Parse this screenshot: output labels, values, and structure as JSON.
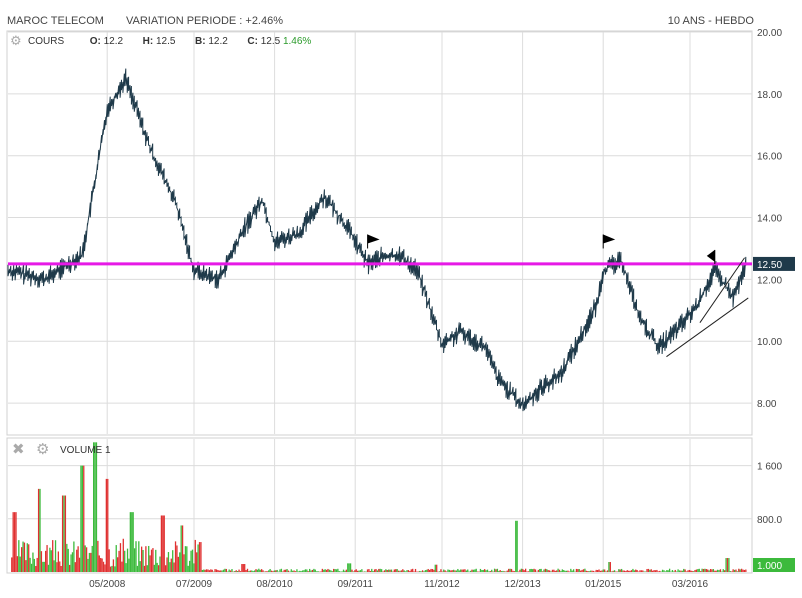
{
  "header": {
    "title": "MAROC TELECOM",
    "variation": "VARIATION PERIODE : +2.46%",
    "period": "10 ANS - HEBDO"
  },
  "price_legend": {
    "label": "COURS",
    "o_label": "O:",
    "o_value": "12.2",
    "h_label": "H:",
    "h_value": "12.5",
    "b_label": "B:",
    "b_value": "12.2",
    "c_label": "C:",
    "c_value": "12.5",
    "change": "1.46%"
  },
  "volume_legend": {
    "label": "VOLUME 1"
  },
  "icons": {
    "settings": "gear-icon",
    "close": "close-icon"
  },
  "colors": {
    "price": "#1f3a4a",
    "level_line": "#e619e6",
    "level_tag_bg": "#1f3a4a",
    "volume_up": "#3cba3c",
    "volume_down": "#e03030",
    "grid": "#dcdcdc",
    "trendline": "#222222"
  },
  "chart_data": [
    {
      "type": "line",
      "name": "price",
      "x": [
        "2007-01",
        "2007-07",
        "2008-01",
        "2008-05",
        "2008-08",
        "2008-12",
        "2009-04",
        "2009-07",
        "2009-11",
        "2010-03",
        "2010-06",
        "2010-08",
        "2010-12",
        "2011-04",
        "2011-08",
        "2011-11",
        "2012-01",
        "2012-04",
        "2012-07",
        "2012-11",
        "2013-02",
        "2013-06",
        "2013-08",
        "2013-12",
        "2014-03",
        "2014-06",
        "2014-09",
        "2014-12",
        "2015-01",
        "2015-04",
        "2015-07",
        "2015-10",
        "2016-01",
        "2016-04",
        "2016-07",
        "2016-10",
        "2016-12"
      ],
      "y": [
        12.3,
        12.0,
        12.8,
        17.5,
        18.5,
        16.2,
        14.5,
        12.3,
        12.0,
        13.6,
        14.6,
        13.2,
        13.5,
        14.7,
        13.6,
        12.5,
        12.7,
        12.8,
        12.3,
        9.9,
        10.3,
        9.8,
        8.8,
        7.9,
        8.5,
        8.9,
        10.0,
        11.2,
        12.3,
        12.6,
        10.7,
        9.8,
        10.4,
        11.1,
        12.3,
        11.4,
        12.45
      ],
      "ylim": [
        7,
        20
      ],
      "yticks": [
        "8.00",
        "10.00",
        "12.00",
        "14.00",
        "16.00",
        "18.00",
        "20.00"
      ],
      "xticks": [
        "05/2008",
        "07/2009",
        "08/2010",
        "09/2011",
        "11/2012",
        "12/2013",
        "01/2015",
        "03/2016"
      ],
      "level": 12.5,
      "level_label": "12.50",
      "flags": [
        "2011-11",
        "2015-01",
        "2016-07"
      ]
    },
    {
      "type": "bar",
      "name": "VOLUME 1",
      "ylim": [
        0,
        2000
      ],
      "yticks": [
        "800.0",
        "1 600"
      ],
      "last_value_label": "1.000",
      "peaks": [
        {
          "x": "2007-02",
          "value": 900
        },
        {
          "x": "2007-06",
          "value": 1250
        },
        {
          "x": "2007-10",
          "value": 1150
        },
        {
          "x": "2008-01",
          "value": 1600
        },
        {
          "x": "2008-03",
          "value": 1950
        },
        {
          "x": "2008-05",
          "value": 1400
        },
        {
          "x": "2008-09",
          "value": 900
        },
        {
          "x": "2009-02",
          "value": 850
        },
        {
          "x": "2009-05",
          "value": 700
        },
        {
          "x": "2009-08",
          "value": 450
        },
        {
          "x": "2010-03",
          "value": 120
        },
        {
          "x": "2011-08",
          "value": 130
        },
        {
          "x": "2012-10",
          "value": 110
        },
        {
          "x": "2013-11",
          "value": 770
        },
        {
          "x": "2015-02",
          "value": 150
        },
        {
          "x": "2016-09",
          "value": 210
        }
      ]
    }
  ]
}
